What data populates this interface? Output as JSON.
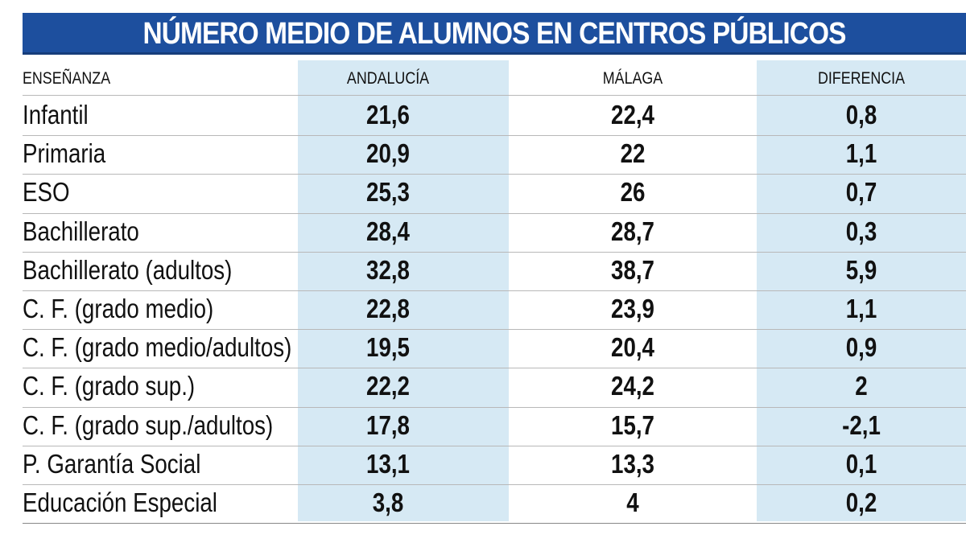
{
  "title": "NÚMERO MEDIO DE ALUMNOS EN CENTROS PÚBLICOS",
  "table": {
    "header": [
      "ENSEÑANZA",
      "ANDALUCÍA",
      "MÁLAGA",
      "DIFERENCIA"
    ],
    "rows": [
      [
        "Infantil",
        "21,6",
        "22,4",
        "0,8"
      ],
      [
        "Primaria",
        "20,9",
        "22",
        "1,1"
      ],
      [
        "ESO",
        "25,3",
        "26",
        "0,7"
      ],
      [
        "Bachillerato",
        "28,4",
        "28,7",
        "0,3"
      ],
      [
        "Bachillerato (adultos)",
        "32,8",
        "38,7",
        "5,9"
      ],
      [
        "C. F. (grado medio)",
        "22,8",
        "23,9",
        "1,1"
      ],
      [
        "C. F. (grado medio/adultos)",
        "19,5",
        "20,4",
        "0,9"
      ],
      [
        "C. F. (grado sup.)",
        "22,2",
        "24,2",
        "2"
      ],
      [
        "C. F. (grado sup./adultos)",
        "17,8",
        "15,7",
        "-2,1"
      ],
      [
        "P. Garantía Social",
        "13,1",
        "13,3",
        "0,1"
      ],
      [
        "Educación Especial",
        "3,8",
        "4",
        "0,2"
      ]
    ]
  }
}
